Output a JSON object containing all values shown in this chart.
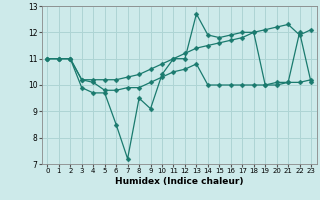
{
  "xlabel": "Humidex (Indice chaleur)",
  "xlim": [
    -0.5,
    23.5
  ],
  "ylim": [
    7,
    13
  ],
  "yticks": [
    7,
    8,
    9,
    10,
    11,
    12,
    13
  ],
  "xticks": [
    0,
    1,
    2,
    3,
    4,
    5,
    6,
    7,
    8,
    9,
    10,
    11,
    12,
    13,
    14,
    15,
    16,
    17,
    18,
    19,
    20,
    21,
    22,
    23
  ],
  "bg_color": "#cdeaea",
  "grid_color": "#aed4d4",
  "line_color": "#1a7a6e",
  "line1_x": [
    0,
    1,
    2,
    3,
    4,
    5,
    6,
    7,
    8,
    9,
    10,
    11,
    12,
    13,
    14,
    15,
    16,
    17,
    18,
    19,
    20,
    21,
    22,
    23
  ],
  "line1_y": [
    11.0,
    11.0,
    11.0,
    9.9,
    9.7,
    9.7,
    8.5,
    7.2,
    9.5,
    9.1,
    10.4,
    11.0,
    11.0,
    12.7,
    11.9,
    11.8,
    11.9,
    12.0,
    12.0,
    10.0,
    10.0,
    10.1,
    12.0,
    10.1
  ],
  "line2_x": [
    0,
    1,
    2,
    3,
    4,
    5,
    6,
    7,
    8,
    9,
    10,
    11,
    12,
    13,
    14,
    15,
    16,
    17,
    18,
    19,
    20,
    21,
    22,
    23
  ],
  "line2_y": [
    11.0,
    11.0,
    11.0,
    10.2,
    10.1,
    9.8,
    9.8,
    9.9,
    9.9,
    10.1,
    10.3,
    10.5,
    10.6,
    10.8,
    10.0,
    10.0,
    10.0,
    10.0,
    10.0,
    10.0,
    10.1,
    10.1,
    10.1,
    10.2
  ],
  "line3_x": [
    0,
    1,
    2,
    3,
    4,
    5,
    6,
    7,
    8,
    9,
    10,
    11,
    12,
    13,
    14,
    15,
    16,
    17,
    18,
    19,
    20,
    21,
    22,
    23
  ],
  "line3_y": [
    11.0,
    11.0,
    11.0,
    10.2,
    10.2,
    10.2,
    10.2,
    10.3,
    10.4,
    10.6,
    10.8,
    11.0,
    11.2,
    11.4,
    11.5,
    11.6,
    11.7,
    11.8,
    12.0,
    12.1,
    12.2,
    12.3,
    11.9,
    12.1
  ],
  "xlabel_fontsize": 6.5,
  "xlabel_fontweight": "bold",
  "tick_fontsize": 5.5,
  "marker_size": 2.5,
  "line_width": 0.9
}
